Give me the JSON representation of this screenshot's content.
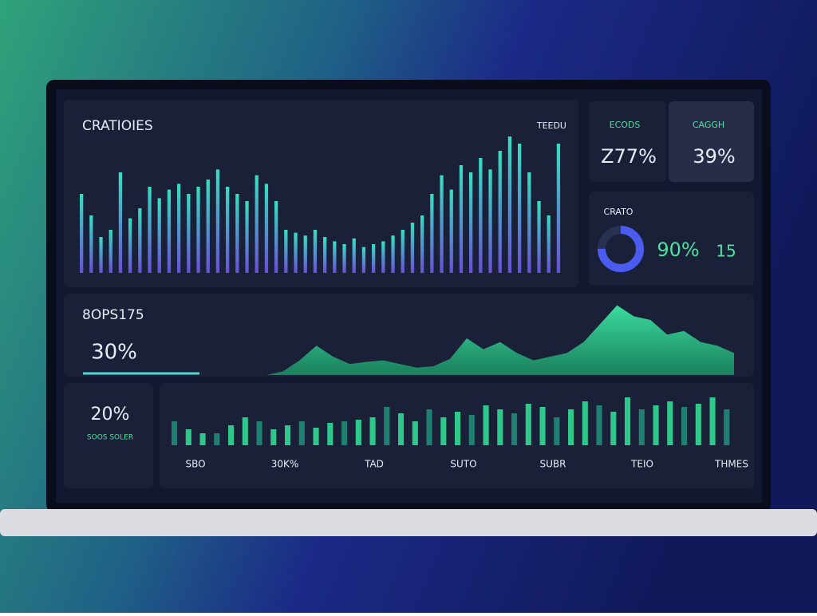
{
  "header": {
    "title": "CRATIOIES",
    "tag": "TEEDU"
  },
  "cards": [
    {
      "label": "ECODS",
      "value": "Z77%"
    },
    {
      "label": "CAGGH",
      "value": "39%"
    }
  ],
  "donut_card": {
    "label": "CRATO",
    "value": "90%",
    "extra": "15",
    "donut": 75
  },
  "area_panel": {
    "title": "8OPS175",
    "value": "30%"
  },
  "small_card": {
    "value": "20%",
    "label": "SOOS SOLER"
  },
  "bottom_labels": [
    "SBO",
    "30K%",
    "TAD",
    "SUTO",
    "SUBR",
    "TEIO",
    "THMES"
  ],
  "top_chart": {
    "values": [
      55,
      40,
      25,
      30,
      70,
      38,
      45,
      60,
      52,
      58,
      62,
      55,
      60,
      65,
      72,
      60,
      55,
      50,
      68,
      62,
      50,
      30,
      28,
      26,
      30,
      25,
      22,
      20,
      24,
      18,
      20,
      22,
      26,
      30,
      35,
      40,
      55,
      68,
      58,
      75,
      70,
      80,
      72,
      85,
      95,
      90,
      70,
      50,
      40,
      90
    ]
  },
  "area_chart": {
    "values": [
      0,
      0,
      0,
      0,
      0,
      5,
      20,
      40,
      25,
      15,
      18,
      20,
      15,
      10,
      12,
      22,
      50,
      35,
      45,
      30,
      20,
      25,
      30,
      45,
      70,
      95,
      80,
      75,
      55,
      60,
      45,
      40,
      30
    ]
  },
  "bar_chart": {
    "values": [
      30,
      20,
      15,
      15,
      25,
      35,
      30,
      20,
      25,
      30,
      22,
      28,
      30,
      32,
      35,
      48,
      40,
      30,
      45,
      35,
      42,
      38,
      50,
      45,
      40,
      52,
      48,
      35,
      45,
      55,
      50,
      42,
      60,
      45,
      50,
      55,
      48,
      52,
      60,
      45
    ]
  }
}
